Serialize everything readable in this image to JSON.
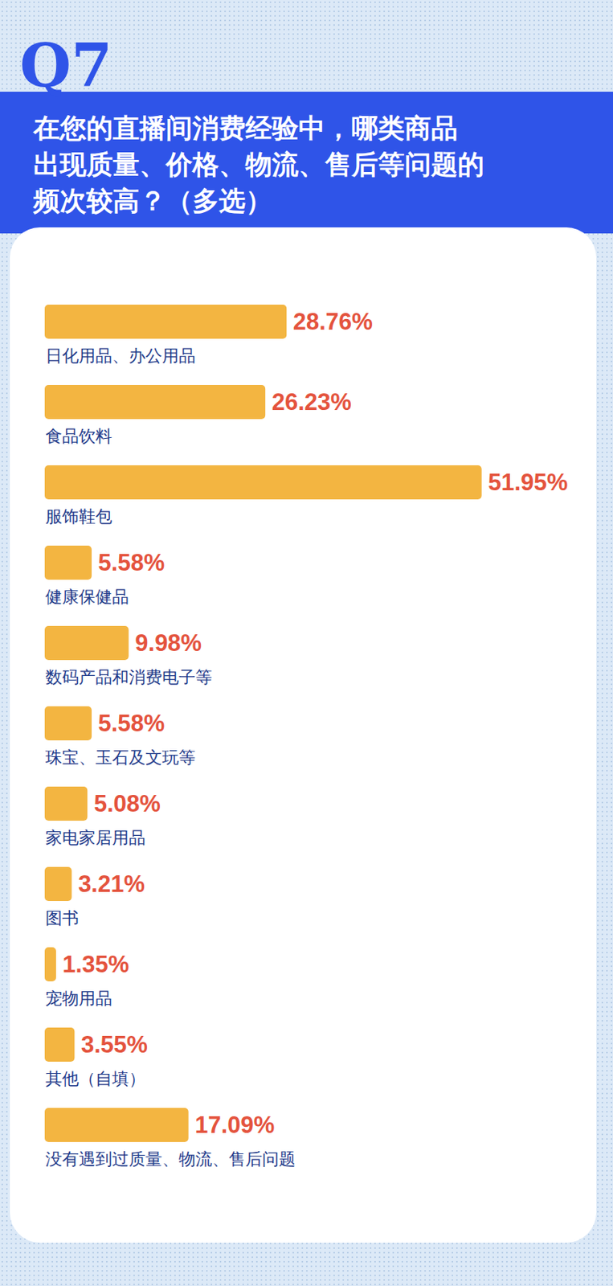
{
  "chart_data": {
    "type": "bar",
    "orientation": "horizontal",
    "question": "Q7",
    "title": "在您的直播间消费经验中，哪类商品\n出现质量、价格、物流、售后等问题的\n频次较高？（多选）",
    "categories": [
      "日化用品、办公用品",
      "食品饮料",
      "服饰鞋包",
      "健康保健品",
      "数码产品和消费电子等",
      "珠宝、玉石及文玩等",
      "家电家居用品",
      "图书",
      "宠物用品",
      "其他（自填）",
      "没有遇到过质量、物流、售后问题"
    ],
    "values": [
      28.76,
      26.23,
      51.95,
      5.58,
      9.98,
      5.58,
      5.08,
      3.21,
      1.35,
      3.55,
      17.09
    ],
    "value_labels": [
      "28.76%",
      "26.23%",
      "51.95%",
      "5.58%",
      "9.98%",
      "5.58%",
      "5.08%",
      "3.21%",
      "1.35%",
      "3.55%",
      "17.09%"
    ],
    "color": "#f3b541",
    "xlim": [
      0,
      60
    ],
    "data_labels": true,
    "tick_labels": false,
    "grid": false
  }
}
